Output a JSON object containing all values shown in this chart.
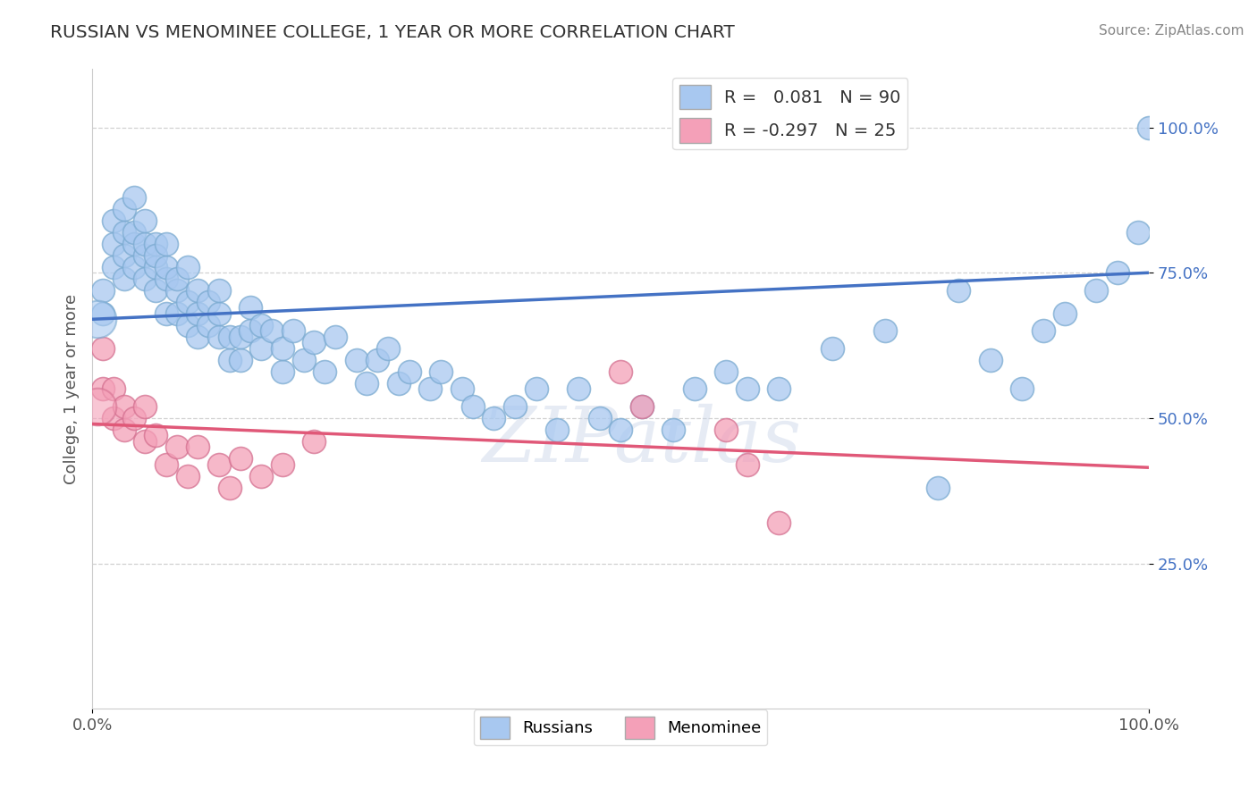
{
  "title": "RUSSIAN VS MENOMINEE COLLEGE, 1 YEAR OR MORE CORRELATION CHART",
  "source_text": "Source: ZipAtlas.com",
  "ylabel": "College, 1 year or more",
  "xlim": [
    0.0,
    1.0
  ],
  "ylim": [
    0.0,
    1.1
  ],
  "x_tick_labels": [
    "0.0%",
    "100.0%"
  ],
  "x_tick_positions": [
    0.0,
    1.0
  ],
  "y_tick_labels": [
    "25.0%",
    "50.0%",
    "75.0%",
    "100.0%"
  ],
  "y_tick_positions": [
    0.25,
    0.5,
    0.75,
    1.0
  ],
  "russian_R": 0.081,
  "russian_N": 90,
  "menominee_R": -0.297,
  "menominee_N": 25,
  "russian_color": "#a8c8f0",
  "russian_edge_color": "#7aaad0",
  "russian_line_color": "#4472c4",
  "menominee_color": "#f4a0b8",
  "menominee_edge_color": "#d47090",
  "menominee_line_color": "#e05878",
  "legend_label_russians": "Russians",
  "legend_label_menominee": "Menominee",
  "watermark": "ZIPatlas",
  "background_color": "#ffffff",
  "russian_trend_y_start": 0.67,
  "russian_trend_y_end": 0.75,
  "menominee_trend_y_start": 0.49,
  "menominee_trend_y_end": 0.415,
  "russian_x": [
    0.01,
    0.01,
    0.02,
    0.02,
    0.02,
    0.03,
    0.03,
    0.03,
    0.03,
    0.04,
    0.04,
    0.04,
    0.04,
    0.05,
    0.05,
    0.05,
    0.05,
    0.06,
    0.06,
    0.06,
    0.06,
    0.07,
    0.07,
    0.07,
    0.07,
    0.08,
    0.08,
    0.08,
    0.09,
    0.09,
    0.09,
    0.1,
    0.1,
    0.1,
    0.11,
    0.11,
    0.12,
    0.12,
    0.12,
    0.13,
    0.13,
    0.14,
    0.14,
    0.15,
    0.15,
    0.16,
    0.16,
    0.17,
    0.18,
    0.18,
    0.19,
    0.2,
    0.21,
    0.22,
    0.23,
    0.25,
    0.26,
    0.27,
    0.28,
    0.29,
    0.3,
    0.32,
    0.33,
    0.35,
    0.36,
    0.38,
    0.4,
    0.42,
    0.44,
    0.46,
    0.48,
    0.5,
    0.52,
    0.55,
    0.57,
    0.6,
    0.62,
    0.65,
    0.7,
    0.75,
    0.8,
    0.82,
    0.85,
    0.88,
    0.9,
    0.92,
    0.95,
    0.97,
    0.99,
    1.0
  ],
  "russian_y": [
    0.72,
    0.68,
    0.8,
    0.76,
    0.84,
    0.78,
    0.82,
    0.86,
    0.74,
    0.8,
    0.76,
    0.82,
    0.88,
    0.78,
    0.74,
    0.8,
    0.84,
    0.76,
    0.8,
    0.72,
    0.78,
    0.74,
    0.68,
    0.76,
    0.8,
    0.72,
    0.68,
    0.74,
    0.66,
    0.7,
    0.76,
    0.64,
    0.68,
    0.72,
    0.66,
    0.7,
    0.64,
    0.68,
    0.72,
    0.6,
    0.64,
    0.6,
    0.64,
    0.65,
    0.69,
    0.62,
    0.66,
    0.65,
    0.58,
    0.62,
    0.65,
    0.6,
    0.63,
    0.58,
    0.64,
    0.6,
    0.56,
    0.6,
    0.62,
    0.56,
    0.58,
    0.55,
    0.58,
    0.55,
    0.52,
    0.5,
    0.52,
    0.55,
    0.48,
    0.55,
    0.5,
    0.48,
    0.52,
    0.48,
    0.55,
    0.58,
    0.55,
    0.55,
    0.62,
    0.65,
    0.38,
    0.72,
    0.6,
    0.55,
    0.65,
    0.68,
    0.72,
    0.75,
    0.82,
    1.0
  ],
  "menominee_x": [
    0.01,
    0.01,
    0.02,
    0.02,
    0.03,
    0.03,
    0.04,
    0.05,
    0.05,
    0.06,
    0.07,
    0.08,
    0.09,
    0.1,
    0.12,
    0.13,
    0.14,
    0.16,
    0.18,
    0.21,
    0.5,
    0.52,
    0.6,
    0.62,
    0.65
  ],
  "menominee_y": [
    0.55,
    0.62,
    0.5,
    0.55,
    0.48,
    0.52,
    0.5,
    0.46,
    0.52,
    0.47,
    0.42,
    0.45,
    0.4,
    0.45,
    0.42,
    0.38,
    0.43,
    0.4,
    0.42,
    0.46,
    0.58,
    0.52,
    0.48,
    0.42,
    0.32
  ]
}
